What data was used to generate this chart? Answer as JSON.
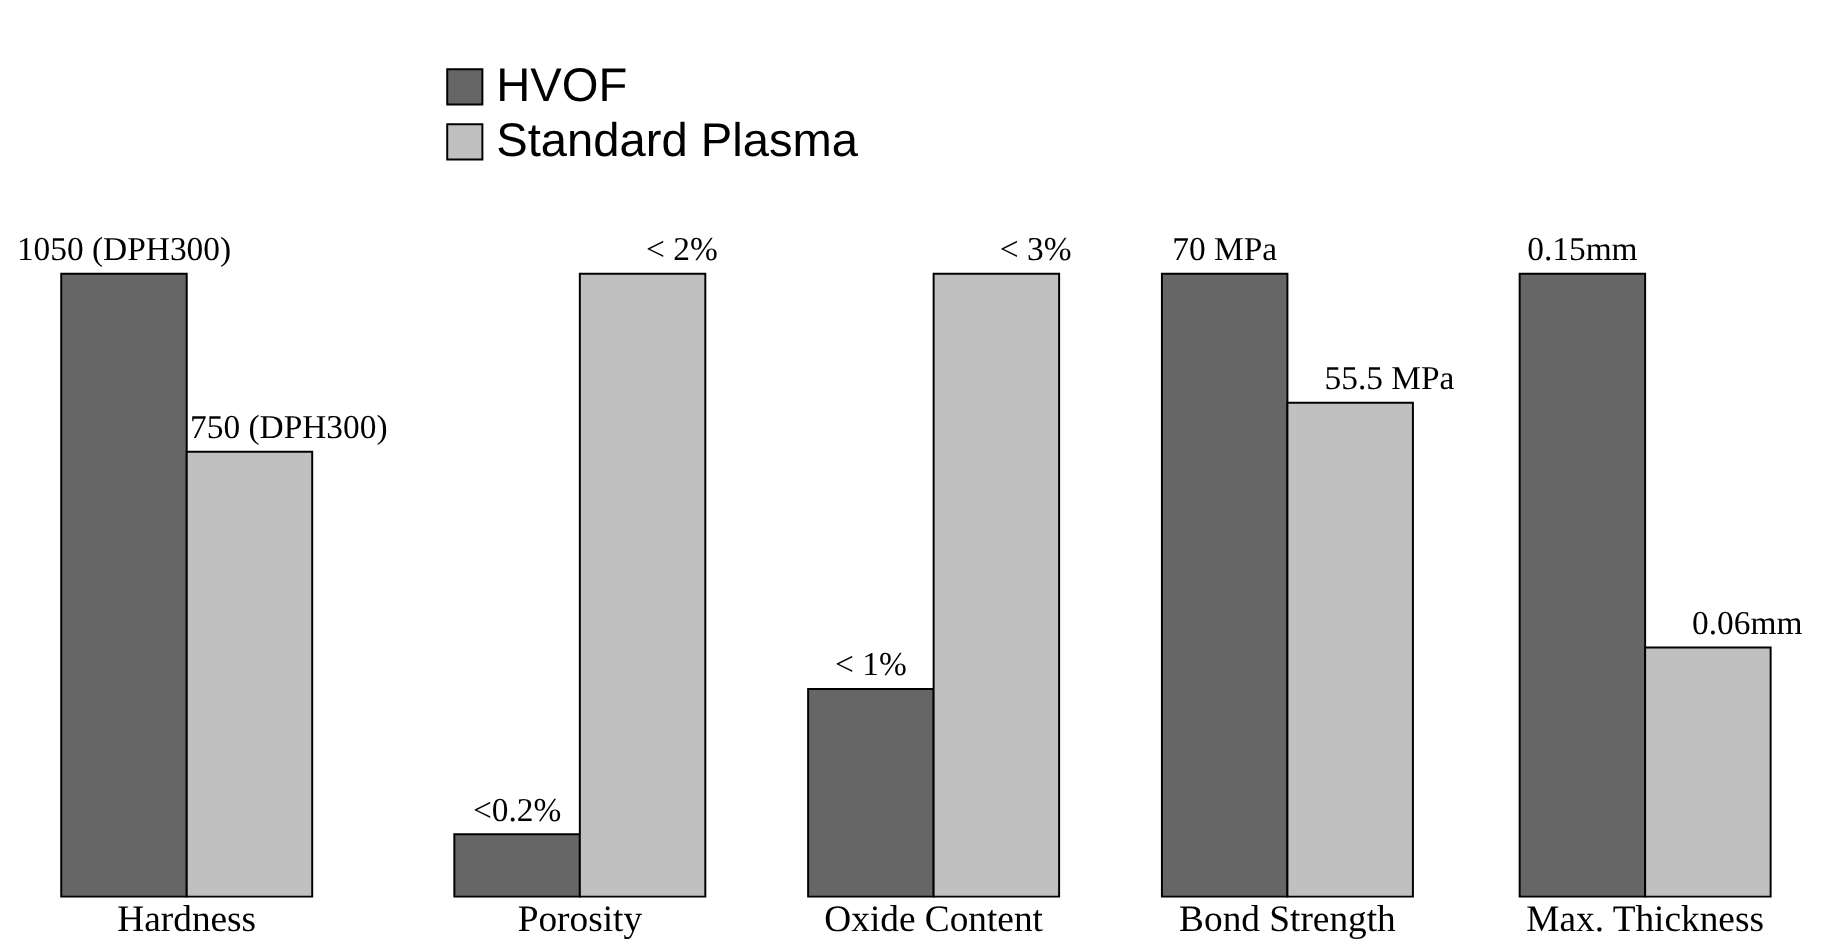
{
  "chart_data": [
    {
      "type": "bar",
      "categories": [
        "Hardness"
      ],
      "tick_labels": "x",
      "legend": "top right",
      "series": [
        {
          "name": "HVOF",
          "color": "#666666",
          "values": [
            1050
          ],
          "value_labels": [
            "1050 (DPH300)"
          ]
        },
        {
          "name": "Standard Plasma",
          "color": "#c0c0c0",
          "values": [
            750
          ],
          "value_labels": [
            "750 (DPH300)"
          ]
        }
      ]
    },
    {
      "type": "bar",
      "categories": [
        "Porosity"
      ],
      "tick_labels": "x",
      "series": [
        {
          "color": "#666666",
          "values": [
            0.2
          ],
          "value_labels": [
            "<0.2%"
          ]
        },
        {
          "color": "#c0c0c0",
          "values": [
            2
          ],
          "value_labels": [
            "< 2%"
          ]
        }
      ]
    },
    {
      "type": "bar",
      "categories": [
        "Oxide Content"
      ],
      "tick_labels": "x",
      "series": [
        {
          "color": "#666666",
          "values": [
            1
          ],
          "value_labels": [
            "< 1%"
          ]
        },
        {
          "color": "#c0c0c0",
          "values": [
            3
          ],
          "value_labels": [
            "< 3%"
          ]
        }
      ]
    },
    {
      "type": "bar",
      "categories": [
        "Bond Strength"
      ],
      "tick_labels": "x",
      "series": [
        {
          "color": "#666666",
          "values": [
            70
          ],
          "value_labels": [
            "70 MPa"
          ]
        },
        {
          "color": "#c0c0c0",
          "values": [
            55.5
          ],
          "value_labels": [
            "55.5 MPa"
          ]
        }
      ]
    },
    {
      "type": "bar",
      "categories": [
        "Max. Thickness"
      ],
      "tick_labels": "x",
      "series": [
        {
          "color": "#666666",
          "values": [
            0.15
          ],
          "value_labels": [
            "0.15mm"
          ]
        },
        {
          "color": "#c0c0c0",
          "values": [
            0.06
          ],
          "value_labels": [
            "0.06mm"
          ]
        }
      ]
    }
  ]
}
